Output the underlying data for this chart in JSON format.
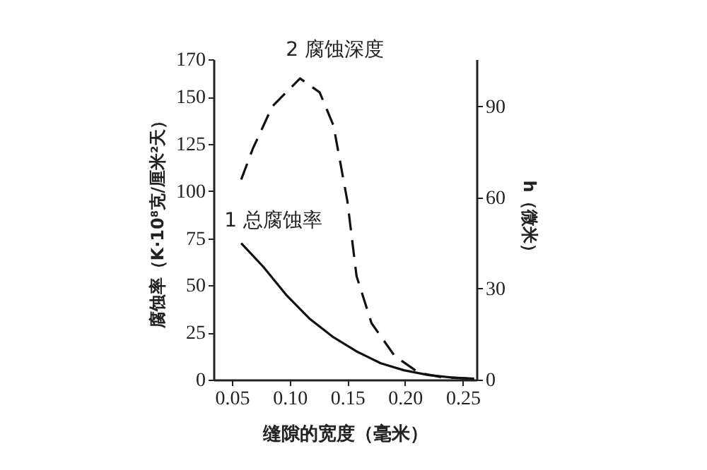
{
  "chart_data": {
    "type": "line",
    "xlabel": "缝隙的宽度（毫米）",
    "ylabel": "腐蚀率（K·10⁸克/厘米²天）",
    "y2label": "h（微米）",
    "xlim": [
      0.034,
      0.262
    ],
    "xticks": [
      0.05,
      {
        "value": 0.1,
        "label": "0.10"
      },
      0.15,
      {
        "value": 0.2,
        "label": "0.20"
      },
      0.25
    ],
    "ylim": [
      0,
      170
    ],
    "yticks": [
      0,
      25,
      50,
      75,
      100,
      125,
      150,
      170
    ],
    "y2lim": [
      0,
      105.5
    ],
    "y2ticks": [
      0,
      30,
      60,
      90
    ],
    "grid": false,
    "marker": "none",
    "series": [
      {
        "name": "1 总腐蚀率",
        "color": "#111111",
        "line_style": "solid",
        "x": [
          0.058,
          0.077,
          0.097,
          0.117,
          0.138,
          0.158,
          0.179,
          0.199,
          0.22,
          0.24,
          0.26
        ],
        "values": [
          72.4,
          60,
          45,
          32.5,
          22.5,
          15,
          8.7,
          5,
          2.5,
          1.2,
          0.5
        ]
      },
      {
        "name": "2 腐蚀深度",
        "color": "#111111",
        "line_style": "dashed",
        "axis": "y2",
        "x": [
          0.058,
          0.068,
          0.085,
          0.109,
          0.126,
          0.138,
          0.15,
          0.158,
          0.171,
          0.191,
          0.212,
          0.232,
          0.26
        ],
        "values": [
          65.9,
          76,
          90,
          99.2,
          94.6,
          83.7,
          58.9,
          34.1,
          18.6,
          7.8,
          2.3,
          0.8,
          0.3
        ]
      }
    ]
  }
}
